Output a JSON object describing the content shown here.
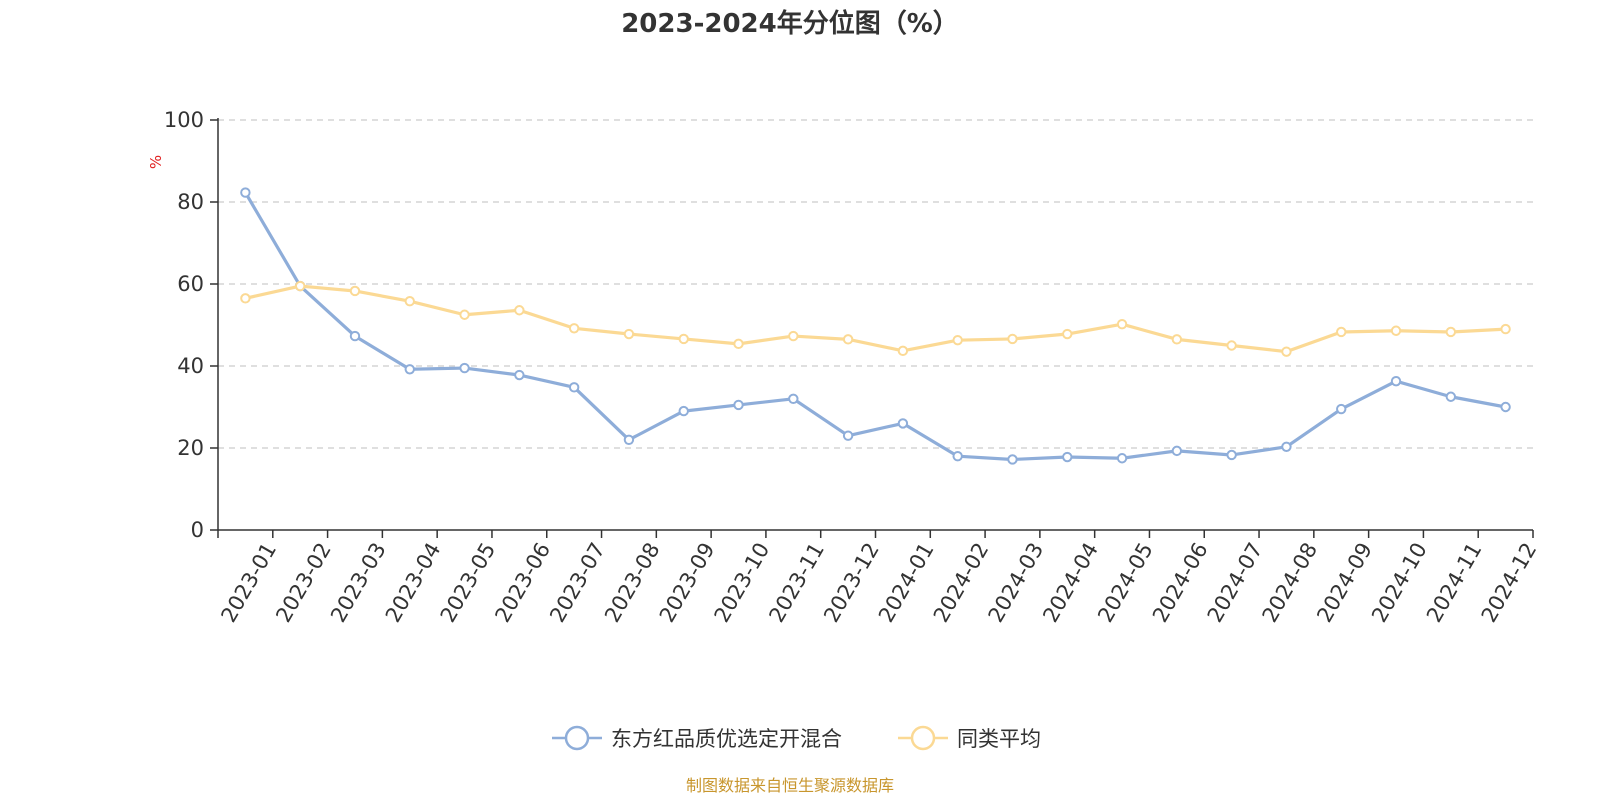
{
  "chart_data": {
    "type": "line",
    "title": "2023-2024年分位图（%）",
    "y_unit": "%",
    "ylim": [
      0,
      100
    ],
    "yticks": [
      0,
      20,
      40,
      60,
      80,
      100
    ],
    "grid": true,
    "legend_position": "bottom",
    "categories": [
      "2023-01",
      "2023-02",
      "2023-03",
      "2023-04",
      "2023-05",
      "2023-06",
      "2023-07",
      "2023-08",
      "2023-09",
      "2023-10",
      "2023-11",
      "2023-12",
      "2024-01",
      "2024-02",
      "2024-03",
      "2024-04",
      "2024-05",
      "2024-06",
      "2024-07",
      "2024-08",
      "2024-09",
      "2024-10",
      "2024-11",
      "2024-12"
    ],
    "series": [
      {
        "name": "东方红品质优选定开混合",
        "color": "#8eadd9",
        "values": [
          82.3,
          59.5,
          47.3,
          39.2,
          39.5,
          37.8,
          34.8,
          22.0,
          29.0,
          30.5,
          32.0,
          23.0,
          26.0,
          18.0,
          17.2,
          17.8,
          17.5,
          19.3,
          18.3,
          20.3,
          29.5,
          36.3,
          32.5,
          30.0
        ]
      },
      {
        "name": "同类平均",
        "color": "#fbd994",
        "values": [
          56.5,
          59.5,
          58.3,
          55.8,
          52.5,
          53.6,
          49.2,
          47.8,
          46.6,
          45.4,
          47.3,
          46.5,
          43.7,
          46.3,
          46.6,
          47.8,
          50.2,
          46.5,
          45.0,
          43.5,
          48.3,
          48.6,
          48.3,
          49.0
        ]
      }
    ]
  },
  "source_note": "制图数据来自恒生聚源数据库",
  "source_color": "#c8962d",
  "unit_color": "#e02020"
}
